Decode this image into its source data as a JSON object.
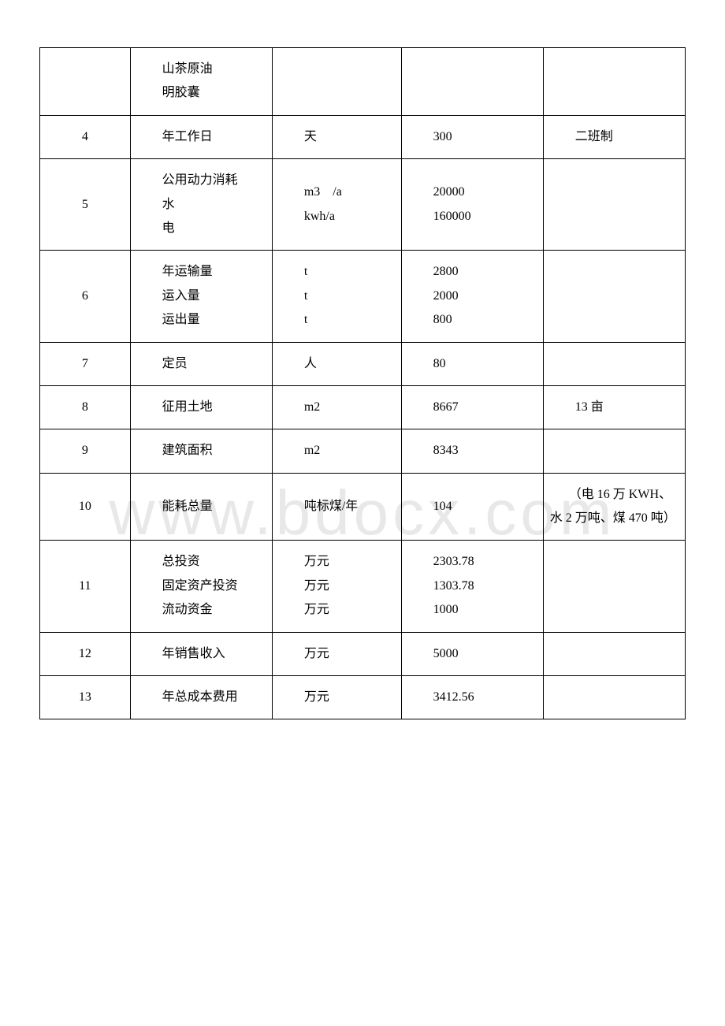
{
  "watermark": "www.bdocx.com",
  "table": {
    "border_color": "#000000",
    "font_size": 16,
    "text_color": "#000000",
    "background_color": "#ffffff",
    "rows": [
      {
        "num": "",
        "name_lines": [
          "　　山茶原油",
          "　　明胶囊"
        ],
        "unit_lines": [
          ""
        ],
        "value_lines": [
          ""
        ],
        "remark": ""
      },
      {
        "num": "4",
        "name_lines": [
          "　　年工作日"
        ],
        "unit_lines": [
          "　　天"
        ],
        "value_lines": [
          "　　300"
        ],
        "remark": "　　二班制"
      },
      {
        "num": "5",
        "name_lines": [
          "　　公用动力消耗",
          "　　水",
          "　　电"
        ],
        "unit_lines": [
          "　　m3　/a",
          "　　kwh/a"
        ],
        "value_lines": [
          "　　20000",
          "　　160000"
        ],
        "remark": ""
      },
      {
        "num": "6",
        "name_lines": [
          "　　年运输量",
          "　　运入量",
          "　　运出量"
        ],
        "unit_lines": [
          "　　t",
          "　　t",
          "　　t"
        ],
        "value_lines": [
          "　　2800",
          "　　2000",
          "　　800"
        ],
        "remark": ""
      },
      {
        "num": "7",
        "name_lines": [
          "　　定员"
        ],
        "unit_lines": [
          "　　人"
        ],
        "value_lines": [
          "　　80"
        ],
        "remark": ""
      },
      {
        "num": "8",
        "name_lines": [
          "　　征用土地"
        ],
        "unit_lines": [
          "　　m2"
        ],
        "value_lines": [
          "　　8667"
        ],
        "remark": "　　13 亩"
      },
      {
        "num": "9",
        "name_lines": [
          "　　建筑面积"
        ],
        "unit_lines": [
          "　　m2"
        ],
        "value_lines": [
          "　　8343"
        ],
        "remark": ""
      },
      {
        "num": "10",
        "name_lines": [
          "　　能耗总量"
        ],
        "unit_lines": [
          "　　吨标煤/年"
        ],
        "value_lines": [
          "　　104"
        ],
        "remark": "　　（电 16 万 KWH、水 2 万吨、煤 470 吨）"
      },
      {
        "num": "11",
        "name_lines": [
          "　　总投资",
          "　　固定资产投资",
          "　　流动资金"
        ],
        "unit_lines": [
          "　　万元",
          "　　万元",
          "　　万元"
        ],
        "value_lines": [
          "　　2303.78",
          "　　1303.78",
          "　　1000"
        ],
        "remark": ""
      },
      {
        "num": "12",
        "name_lines": [
          "　　年销售收入"
        ],
        "unit_lines": [
          "　　万元"
        ],
        "value_lines": [
          "　　5000"
        ],
        "remark": ""
      },
      {
        "num": "13",
        "name_lines": [
          "　　年总成本费用"
        ],
        "unit_lines": [
          "　　万元"
        ],
        "value_lines": [
          "　　3412.56"
        ],
        "remark": ""
      }
    ]
  }
}
